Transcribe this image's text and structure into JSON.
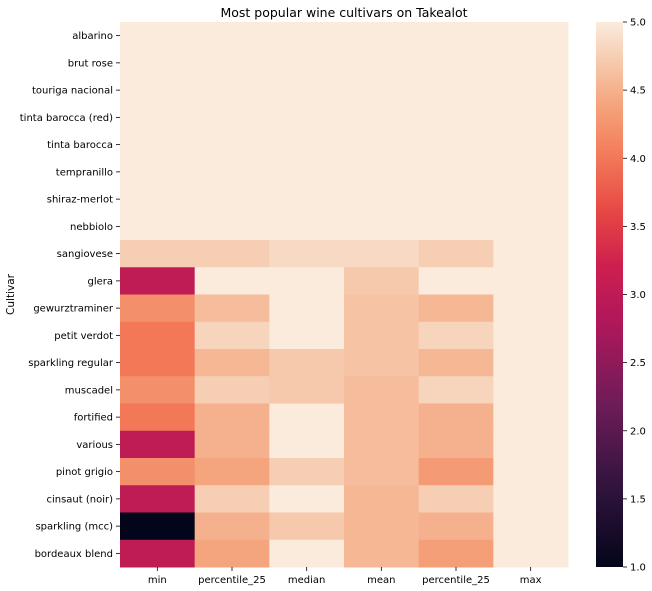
{
  "chart_data": {
    "type": "heatmap",
    "title": "Most popular wine cultivars on Takealot",
    "xlabel": "",
    "ylabel": "Cultivar",
    "columns": [
      "min",
      "percentile_25",
      "median",
      "mean",
      "percentile_25",
      "max"
    ],
    "rows": [
      "albarino",
      "brut rose",
      "touriga nacional",
      "tinta barocca (red)",
      "tinta barocca",
      "tempranillo",
      "shiraz-merlot",
      "nebbiolo",
      "sangiovese",
      "glera",
      "gewurztraminer",
      "petit verdot",
      "sparkling regular",
      "muscadel",
      "fortified",
      "various",
      "pinot grigio",
      "cinsaut (noir)",
      "sparkling (mcc)",
      "bordeaux blend"
    ],
    "values": [
      [
        5.0,
        5.0,
        5.0,
        5.0,
        5.0,
        5.0
      ],
      [
        5.0,
        5.0,
        5.0,
        5.0,
        5.0,
        5.0
      ],
      [
        5.0,
        5.0,
        5.0,
        5.0,
        5.0,
        5.0
      ],
      [
        5.0,
        5.0,
        5.0,
        5.0,
        5.0,
        5.0
      ],
      [
        5.0,
        5.0,
        5.0,
        5.0,
        5.0,
        5.0
      ],
      [
        5.0,
        5.0,
        5.0,
        5.0,
        5.0,
        5.0
      ],
      [
        5.0,
        5.0,
        5.0,
        5.0,
        5.0,
        5.0
      ],
      [
        5.0,
        5.0,
        5.0,
        5.0,
        5.0,
        5.0
      ],
      [
        4.75,
        4.75,
        4.85,
        4.85,
        4.75,
        5.0
      ],
      [
        3.0,
        5.0,
        5.0,
        4.7,
        5.0,
        5.0
      ],
      [
        4.2,
        4.6,
        5.0,
        4.65,
        4.55,
        5.0
      ],
      [
        4.0,
        4.8,
        5.0,
        4.65,
        4.8,
        5.0
      ],
      [
        4.0,
        4.55,
        4.7,
        4.65,
        4.55,
        5.0
      ],
      [
        4.2,
        4.75,
        4.7,
        4.6,
        4.8,
        5.0
      ],
      [
        4.0,
        4.5,
        5.0,
        4.6,
        4.5,
        5.0
      ],
      [
        3.0,
        4.5,
        5.0,
        4.6,
        4.5,
        5.0
      ],
      [
        4.2,
        4.4,
        4.75,
        4.6,
        4.3,
        5.0
      ],
      [
        3.0,
        4.75,
        5.0,
        4.55,
        4.75,
        5.0
      ],
      [
        1.0,
        4.5,
        4.7,
        4.55,
        4.5,
        5.0
      ],
      [
        3.0,
        4.4,
        5.0,
        4.55,
        4.35,
        5.0
      ]
    ],
    "colorbar": {
      "min": 1.0,
      "max": 5.0,
      "ticks": [
        "1.0",
        "1.5",
        "2.0",
        "2.5",
        "3.0",
        "3.5",
        "4.0",
        "4.5",
        "5.0"
      ]
    },
    "colormap": "rocket",
    "legend": "colorbar-right"
  }
}
